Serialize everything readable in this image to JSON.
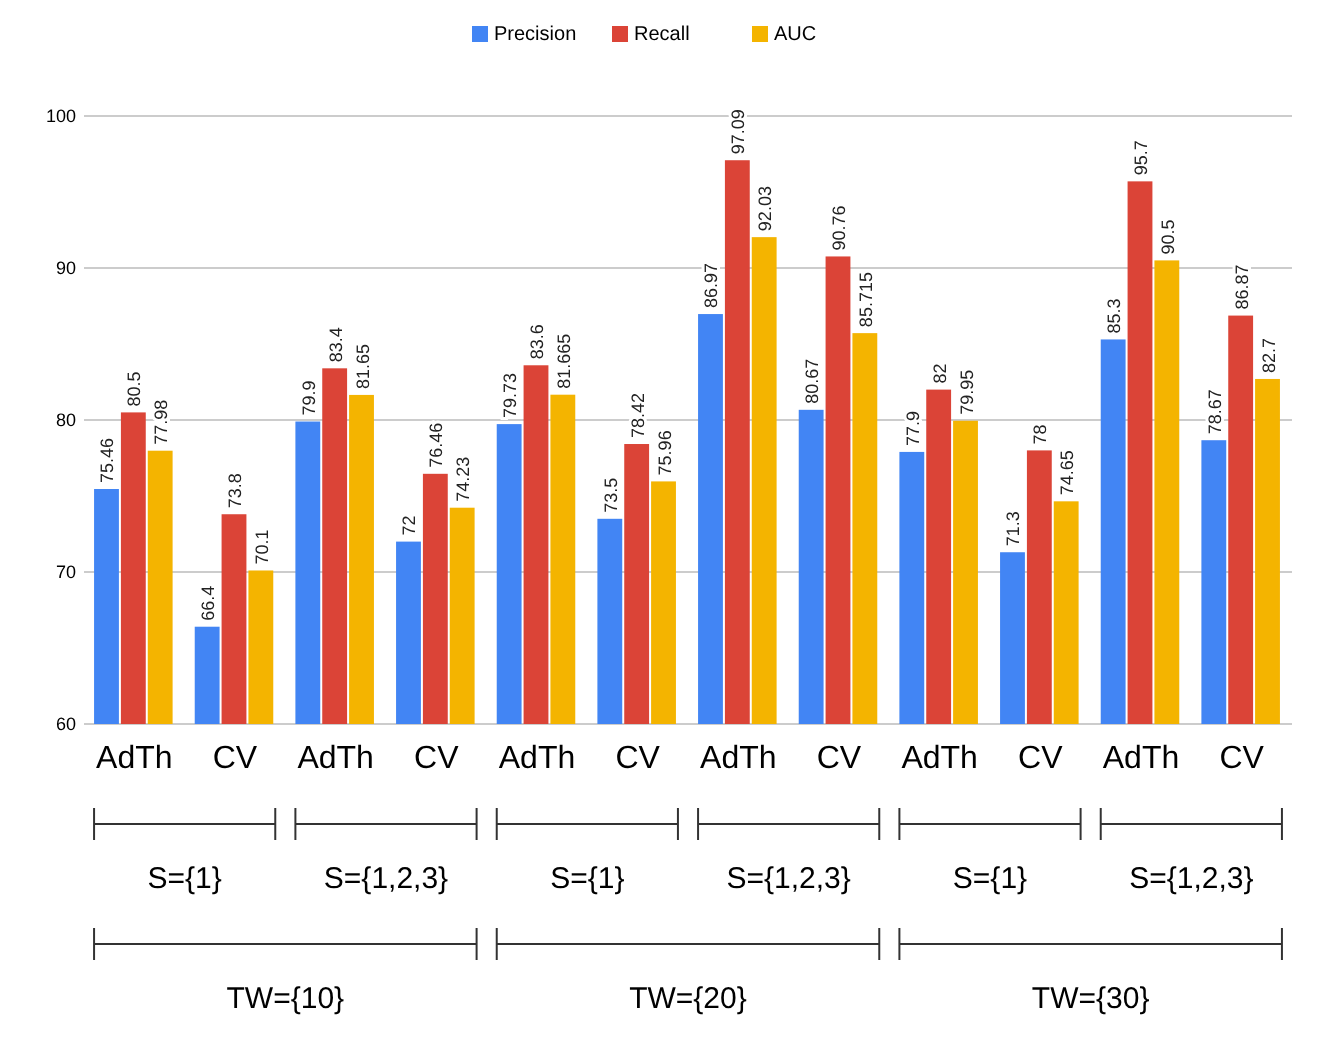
{
  "chart_data": {
    "type": "bar",
    "categories": [
      "AdTh",
      "CV",
      "AdTh",
      "CV",
      "AdTh",
      "CV",
      "AdTh",
      "CV",
      "AdTh",
      "CV",
      "AdTh",
      "CV"
    ],
    "series": [
      {
        "name": "Precision",
        "color": "#4285f4",
        "values": [
          75.46,
          66.4,
          79.9,
          72,
          79.73,
          73.5,
          86.97,
          80.67,
          77.9,
          71.3,
          85.3,
          78.67
        ]
      },
      {
        "name": "Recall",
        "color": "#db4437",
        "values": [
          80.5,
          73.8,
          83.4,
          76.46,
          83.6,
          78.42,
          97.09,
          90.76,
          82,
          78,
          95.7,
          86.87
        ]
      },
      {
        "name": "AUC",
        "color": "#f4b400",
        "values": [
          77.98,
          70.1,
          81.65,
          74.23,
          81.665,
          75.96,
          92.03,
          85.715,
          79.95,
          74.65,
          90.5,
          82.7
        ]
      }
    ],
    "ylim": [
      60,
      100
    ],
    "yticks": [
      60,
      70,
      80,
      90,
      100
    ],
    "grid": true,
    "legend": "top",
    "data_labels": true,
    "annotations": [
      "S={1}",
      "S={1,2,3}",
      "S={1}",
      "S={1,2,3}",
      "S={1}",
      "S={1,2,3}",
      "TW={10}",
      "TW={20}",
      "TW={30}"
    ]
  }
}
